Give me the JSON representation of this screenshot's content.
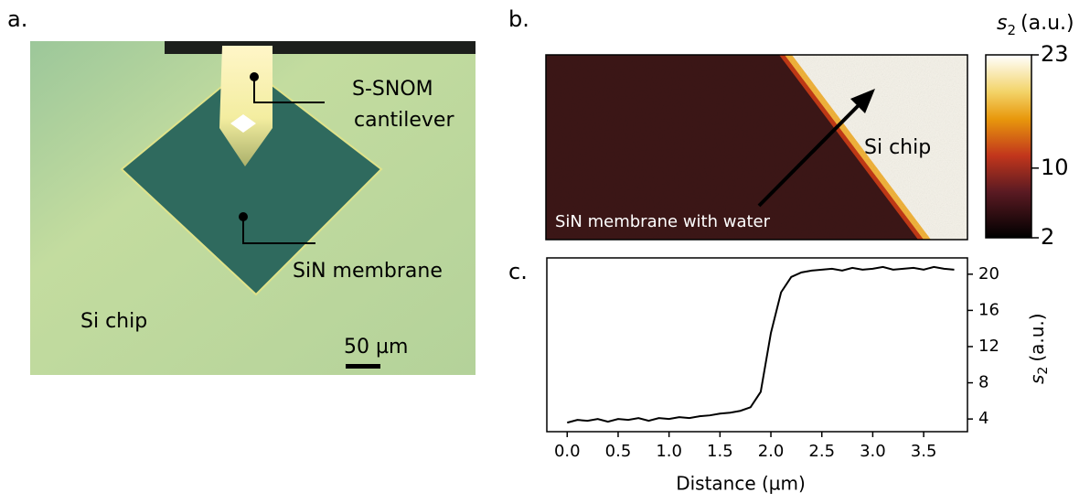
{
  "panel_a": {
    "label": "a.",
    "cantilever_label": [
      "S-SNOM",
      "cantilever"
    ],
    "membrane_label": "SiN membrane",
    "chip_label": "Si chip",
    "scale_bar": "50 µm"
  },
  "panel_b": {
    "label": "b.",
    "chip_label": "Si chip",
    "membrane_label": "SiN membrane with water",
    "colorbar": {
      "title_symbol": "s",
      "title_sub": "2",
      "title_unit": "(a.u.)",
      "lim": [
        2,
        23
      ],
      "ticks": [
        2,
        10,
        23
      ]
    }
  },
  "chart_data": {
    "type": "line",
    "label": "c.",
    "xlabel": "Distance (µm)",
    "ylabel_symbol": "s",
    "ylabel_sub": "2",
    "ylabel_unit": "(a.u.)",
    "x": [
      0.0,
      0.1,
      0.2,
      0.3,
      0.4,
      0.5,
      0.6,
      0.7,
      0.8,
      0.9,
      1.0,
      1.1,
      1.2,
      1.3,
      1.4,
      1.5,
      1.6,
      1.7,
      1.8,
      1.9,
      2.0,
      2.1,
      2.2,
      2.3,
      2.4,
      2.5,
      2.6,
      2.7,
      2.8,
      2.9,
      3.0,
      3.1,
      3.2,
      3.3,
      3.4,
      3.5,
      3.6,
      3.7,
      3.8
    ],
    "series": [
      {
        "color": "#000000",
        "values": [
          3.6,
          3.9,
          3.8,
          4.0,
          3.7,
          4.0,
          3.9,
          4.1,
          3.8,
          4.1,
          4.0,
          4.2,
          4.1,
          4.3,
          4.4,
          4.6,
          4.7,
          4.9,
          5.3,
          7.0,
          13.5,
          18.0,
          19.7,
          20.2,
          20.4,
          20.5,
          20.6,
          20.4,
          20.7,
          20.5,
          20.6,
          20.8,
          20.5,
          20.6,
          20.7,
          20.5,
          20.8,
          20.6,
          20.5
        ]
      }
    ],
    "xlim": [
      -0.2,
      3.93
    ],
    "ylim": [
      2.6,
      21.8
    ],
    "xticks": [
      {
        "value": 0,
        "label": "0.0"
      },
      {
        "value": 0.5,
        "label": "0.5"
      },
      {
        "value": 1,
        "label": "1.0"
      },
      {
        "value": 1.5,
        "label": "1.5"
      },
      {
        "value": 2,
        "label": "2.0"
      },
      {
        "value": 2.5,
        "label": "2.5"
      },
      {
        "value": 3,
        "label": "3.0"
      },
      {
        "value": 3.5,
        "label": "3.5"
      }
    ],
    "yticks": [
      4,
      8,
      12,
      16,
      20
    ]
  }
}
